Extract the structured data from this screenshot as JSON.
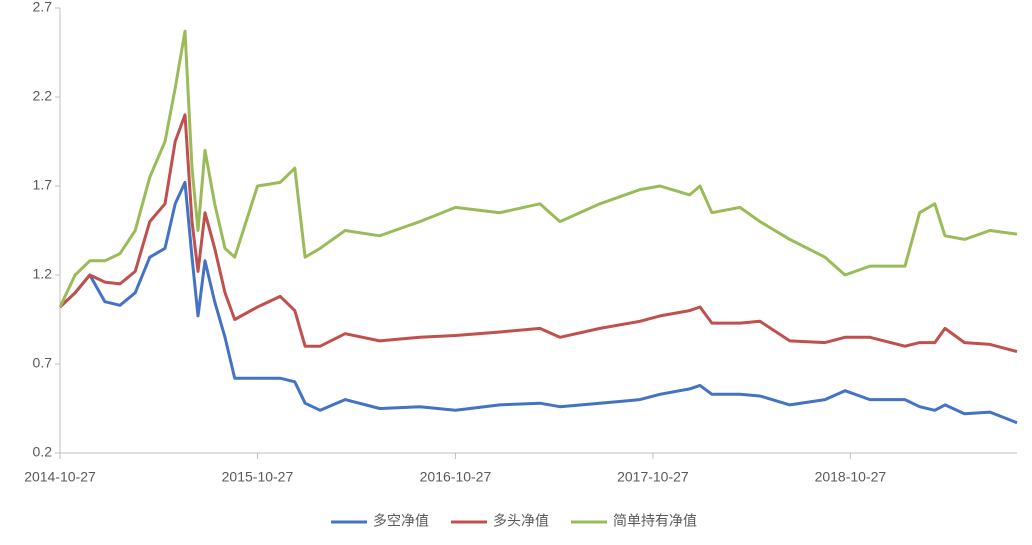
{
  "chart_data": {
    "type": "line",
    "x": [
      "2014-10-27",
      "2014-11-24",
      "2014-12-21",
      "2015-01-18",
      "2015-02-15",
      "2015-03-15",
      "2015-04-11",
      "2015-05-09",
      "2015-05-28",
      "2015-06-15",
      "2015-06-28",
      "2015-07-09",
      "2015-07-22",
      "2015-08-09",
      "2015-08-28",
      "2015-09-15",
      "2015-10-27",
      "2015-12-08",
      "2016-01-04",
      "2016-01-23",
      "2016-02-20",
      "2016-04-06",
      "2016-06-09",
      "2016-08-22",
      "2016-10-27",
      "2017-01-17",
      "2017-04-01",
      "2017-05-08",
      "2017-07-21",
      "2017-10-03",
      "2017-11-09",
      "2018-01-03",
      "2018-01-22",
      "2018-02-13",
      "2018-04-06",
      "2018-05-13",
      "2018-07-07",
      "2018-09-10",
      "2018-10-17",
      "2018-12-02",
      "2019-02-05",
      "2019-03-04",
      "2019-04-01",
      "2019-04-20",
      "2019-05-26",
      "2019-07-12",
      "2019-08-31"
    ],
    "series": [
      {
        "name": "多空净值",
        "color": "#4472c4",
        "values": [
          1.02,
          1.1,
          1.2,
          1.05,
          1.03,
          1.1,
          1.3,
          1.35,
          1.6,
          1.72,
          1.3,
          0.97,
          1.28,
          1.05,
          0.85,
          0.62,
          0.62,
          0.62,
          0.6,
          0.48,
          0.44,
          0.5,
          0.45,
          0.46,
          0.44,
          0.47,
          0.48,
          0.46,
          0.48,
          0.5,
          0.53,
          0.56,
          0.58,
          0.53,
          0.53,
          0.52,
          0.47,
          0.5,
          0.55,
          0.5,
          0.5,
          0.46,
          0.44,
          0.47,
          0.42,
          0.43,
          0.37
        ]
      },
      {
        "name": "多头净值",
        "color": "#c0504d",
        "values": [
          1.02,
          1.1,
          1.2,
          1.16,
          1.15,
          1.22,
          1.5,
          1.6,
          1.95,
          2.1,
          1.5,
          1.22,
          1.55,
          1.35,
          1.1,
          0.95,
          1.02,
          1.08,
          1.0,
          0.8,
          0.8,
          0.87,
          0.83,
          0.85,
          0.86,
          0.88,
          0.9,
          0.85,
          0.9,
          0.94,
          0.97,
          1.0,
          1.02,
          0.93,
          0.93,
          0.94,
          0.83,
          0.82,
          0.85,
          0.85,
          0.8,
          0.82,
          0.82,
          0.9,
          0.82,
          0.81,
          0.77
        ]
      },
      {
        "name": "简单持有净值",
        "color": "#9bbb59",
        "values": [
          1.02,
          1.2,
          1.28,
          1.28,
          1.32,
          1.45,
          1.75,
          1.95,
          2.25,
          2.57,
          1.8,
          1.45,
          1.9,
          1.6,
          1.35,
          1.3,
          1.7,
          1.72,
          1.8,
          1.3,
          1.35,
          1.45,
          1.42,
          1.5,
          1.58,
          1.55,
          1.6,
          1.5,
          1.6,
          1.68,
          1.7,
          1.65,
          1.7,
          1.55,
          1.58,
          1.5,
          1.4,
          1.3,
          1.2,
          1.25,
          1.25,
          1.55,
          1.6,
          1.42,
          1.4,
          1.45,
          1.43
        ]
      }
    ],
    "xlim": [
      "2014-10-27",
      "2019-08-31"
    ],
    "xticks": [
      "2014-10-27",
      "2015-10-27",
      "2016-10-27",
      "2017-10-27",
      "2018-10-27"
    ],
    "ylim": [
      0.2,
      2.7
    ],
    "yticks": [
      0.2,
      0.7,
      1.2,
      1.7,
      2.2,
      2.7
    ],
    "grid": false,
    "legend": "bottom"
  }
}
